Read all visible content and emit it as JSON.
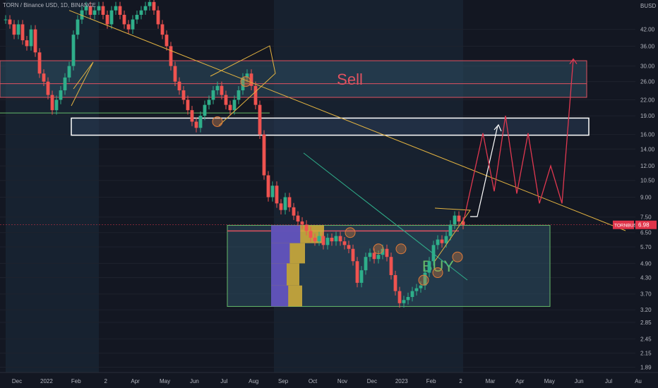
{
  "header": {
    "symbol_label": "TORN / Binance USD, 1D, BINANCE"
  },
  "colors": {
    "background": "#131722",
    "grid": "#1e222d",
    "sell_zone": "#e05260",
    "buy_zone": "#66bb6a",
    "trendline": "#e3b341",
    "forecast": "#e03850",
    "candle_up": "#2fae8a",
    "candle_down": "#ef5350",
    "price_badge": "#e0344a",
    "volume_profile_main": "#d6b13a",
    "volume_profile_value": "#5549c4"
  },
  "chart_data": {
    "type": "candlestick",
    "title": "",
    "y_axis": {
      "unit_label": "BUSD",
      "scale": "log",
      "ticks": [
        "42.00",
        "36.00",
        "30.00",
        "26.00",
        "22.00",
        "19.00",
        "16.00",
        "14.00",
        "12.00",
        "10.50",
        "9.00",
        "7.50",
        "6.50",
        "5.70",
        "4.90",
        "4.30",
        "3.70",
        "3.20",
        "2.85",
        "2.45",
        "2.15",
        "1.89"
      ],
      "range": [
        1.8,
        55
      ]
    },
    "x_axis": {
      "ticks": [
        "Dec",
        "2022",
        "Feb",
        "2",
        "Apr",
        "May",
        "Jun",
        "Jul",
        "Aug",
        "Sep",
        "Oct",
        "Nov",
        "Dec",
        "2023",
        "Feb",
        "2",
        "Mar",
        "Apr",
        "May",
        "Jun",
        "Jul",
        "Au"
      ]
    },
    "price_line": {
      "label": "TORNBUSD",
      "value": "6.98"
    },
    "zones": [
      {
        "label": "Sell",
        "low": 22.5,
        "high": 31.5
      },
      {
        "label": "",
        "low": 15.9,
        "high": 18.6
      },
      {
        "label": "BUY",
        "low": 3.3,
        "high": 6.95
      }
    ],
    "price_path": [
      [
        0,
        46
      ],
      [
        3,
        44
      ],
      [
        6,
        40
      ],
      [
        9,
        44
      ],
      [
        12,
        38
      ],
      [
        15,
        36
      ],
      [
        18,
        42
      ],
      [
        21,
        34
      ],
      [
        24,
        28
      ],
      [
        27,
        26
      ],
      [
        30,
        23
      ],
      [
        33,
        20
      ],
      [
        36,
        22
      ],
      [
        39,
        24
      ],
      [
        42,
        27
      ],
      [
        45,
        30
      ],
      [
        48,
        40
      ],
      [
        51,
        46
      ],
      [
        54,
        50
      ],
      [
        57,
        52
      ],
      [
        60,
        48
      ],
      [
        63,
        50
      ],
      [
        66,
        52
      ],
      [
        69,
        48
      ],
      [
        72,
        44
      ],
      [
        75,
        50
      ],
      [
        78,
        52
      ],
      [
        81,
        48
      ],
      [
        84,
        44
      ],
      [
        87,
        42
      ],
      [
        90,
        46
      ],
      [
        93,
        48
      ],
      [
        96,
        50
      ],
      [
        99,
        52
      ],
      [
        102,
        54
      ],
      [
        105,
        50
      ],
      [
        108,
        44
      ],
      [
        111,
        40
      ],
      [
        114,
        36
      ],
      [
        117,
        30
      ],
      [
        120,
        26
      ],
      [
        123,
        24
      ],
      [
        126,
        22
      ],
      [
        129,
        20
      ],
      [
        132,
        18
      ],
      [
        135,
        17
      ],
      [
        138,
        19
      ],
      [
        141,
        21
      ],
      [
        144,
        22
      ],
      [
        147,
        24
      ],
      [
        150,
        25
      ],
      [
        153,
        23
      ],
      [
        156,
        21
      ],
      [
        159,
        20
      ],
      [
        162,
        22
      ],
      [
        165,
        24
      ],
      [
        168,
        27
      ],
      [
        171,
        28
      ],
      [
        174,
        25
      ],
      [
        177,
        21
      ],
      [
        180,
        16
      ],
      [
        183,
        11
      ],
      [
        186,
        9
      ],
      [
        189,
        10
      ],
      [
        192,
        8.5
      ],
      [
        195,
        8
      ],
      [
        198,
        9
      ],
      [
        201,
        8.2
      ],
      [
        204,
        7.6
      ],
      [
        207,
        7.2
      ],
      [
        210,
        7.0
      ],
      [
        213,
        6.6
      ],
      [
        216,
        6.2
      ],
      [
        219,
        6.0
      ],
      [
        222,
        6.3
      ],
      [
        225,
        5.8
      ],
      [
        228,
        6.2
      ],
      [
        231,
        6.0
      ],
      [
        234,
        6.3
      ],
      [
        237,
        6.0
      ],
      [
        240,
        5.8
      ],
      [
        243,
        5.6
      ],
      [
        246,
        5.0
      ],
      [
        249,
        4.1
      ],
      [
        252,
        4.6
      ],
      [
        255,
        5.2
      ],
      [
        258,
        5.4
      ],
      [
        261,
        5.1
      ],
      [
        264,
        5.3
      ],
      [
        267,
        5.6
      ],
      [
        270,
        5.2
      ],
      [
        273,
        4.4
      ],
      [
        276,
        3.8
      ],
      [
        279,
        3.4
      ],
      [
        282,
        3.5
      ],
      [
        285,
        3.6
      ],
      [
        288,
        3.8
      ],
      [
        291,
        3.9
      ],
      [
        294,
        4.0
      ],
      [
        297,
        4.5
      ],
      [
        300,
        5.0
      ],
      [
        303,
        5.8
      ],
      [
        306,
        6.1
      ],
      [
        309,
        5.9
      ],
      [
        312,
        6.3
      ],
      [
        315,
        7.0
      ],
      [
        318,
        7.6
      ],
      [
        321,
        7.2
      ],
      [
        324,
        6.98
      ]
    ],
    "trendlines": [
      {
        "from": [
          45,
          50
        ],
        "to": [
          373,
          6.4
        ]
      },
      {
        "from": [
          211,
          13.5
        ],
        "to": [
          274,
          4.1
        ]
      }
    ],
    "forecast_path": [
      [
        324,
        7.1
      ],
      [
        338,
        16.2
      ],
      [
        346,
        9.5
      ],
      [
        354,
        19
      ],
      [
        362,
        9.3
      ],
      [
        370,
        16.2
      ],
      [
        378,
        8.5
      ],
      [
        386,
        12
      ],
      [
        394,
        8.5
      ],
      [
        402,
        32
      ]
    ],
    "circles": [
      {
        "i": 150,
        "v": 18
      },
      {
        "i": 170,
        "v": 26
      },
      {
        "i": 244,
        "v": 6.5
      },
      {
        "i": 264,
        "v": 5.6
      },
      {
        "i": 280,
        "v": 5.6
      },
      {
        "i": 296,
        "v": 4.2
      },
      {
        "i": 306,
        "v": 4.5
      },
      {
        "i": 320,
        "v": 5.2
      }
    ]
  }
}
